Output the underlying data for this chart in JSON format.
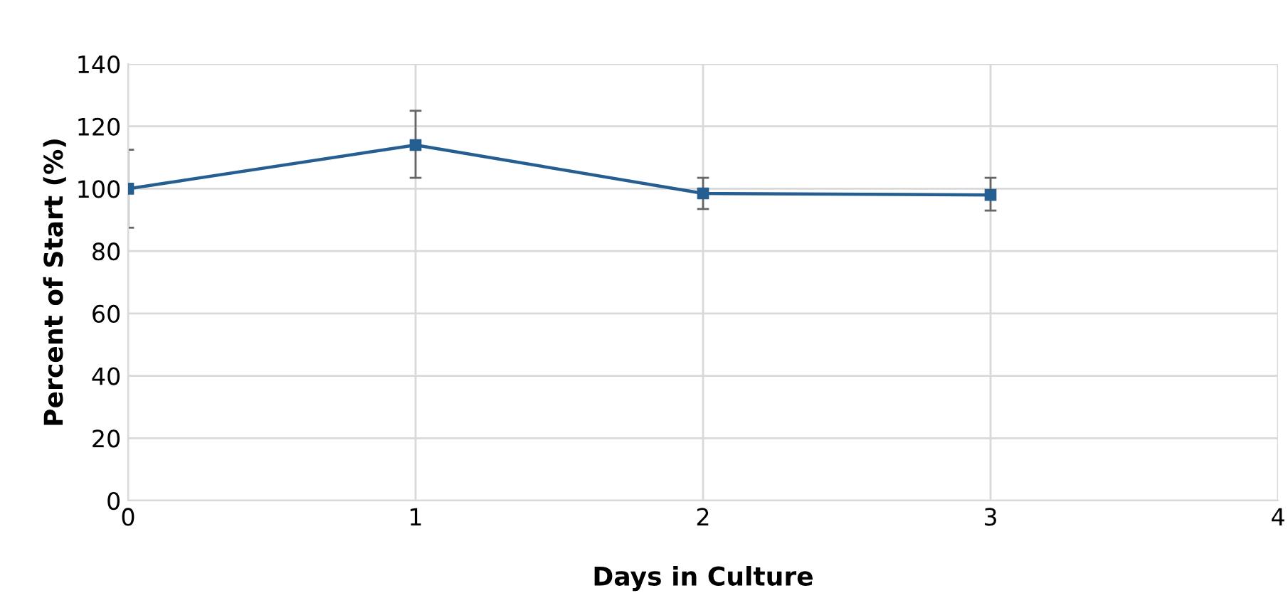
{
  "chart_data": {
    "type": "line",
    "xlabel": "Days in Culture",
    "ylabel": "Percent of Start (%)",
    "x": [
      0,
      1,
      2,
      3
    ],
    "series": [
      {
        "color": "#255e91",
        "values": [
          100,
          114,
          98.5,
          98
        ],
        "errors": [
          [
            87.5,
            112.5
          ],
          [
            103.5,
            125
          ],
          [
            93.5,
            103.5
          ],
          [
            93,
            103.5
          ]
        ]
      }
    ],
    "xlim": [
      0,
      4
    ],
    "xticks": [
      0,
      1,
      2,
      3,
      4
    ],
    "ylim": [
      0,
      140
    ],
    "yticks": [
      0,
      20,
      40,
      60,
      80,
      100,
      120,
      140
    ],
    "grid": true,
    "marker": "square",
    "line_style": "solid"
  }
}
